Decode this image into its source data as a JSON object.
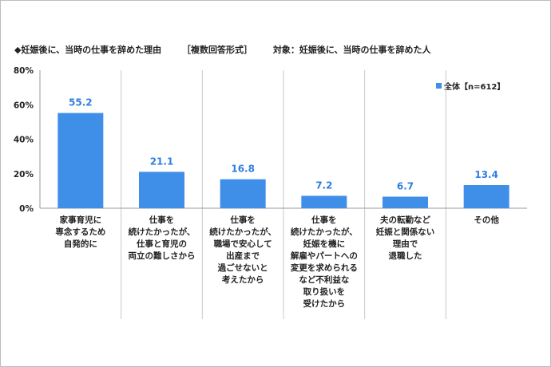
{
  "header": {
    "title": "◆妊娠後に、当時の仕事を辞めた理由",
    "format": "［複数回答形式］",
    "target": "対象：妊娠後に、当時の仕事を辞めた人"
  },
  "colors": {
    "bar": "#3f8ee8",
    "value_label": "#2f7fe0",
    "grid": "#c8c8c8"
  },
  "chart_data": {
    "type": "bar",
    "categories": [
      "家事育児に\n専念するため\n自発的に",
      "仕事を\n続けたかったが、\n仕事と育児の\n両立の難しさから",
      "仕事を\n続けたかったが、\n職場で安心して\n出産まで\n過ごせないと\n考えたから",
      "仕事を\n続けたかったが、\n妊娠を機に\n解雇やパートへの\n変更を求められる\nなど不利益な\n取り扱いを\n受けたから",
      "夫の転勤など\n妊娠と関係ない\n理由で\n退職した",
      "その他"
    ],
    "series": [
      {
        "name": "全体【n=612】",
        "values": [
          55.2,
          21.1,
          16.8,
          7.2,
          6.7,
          13.4
        ]
      }
    ],
    "value_labels": [
      "55.2",
      "21.1",
      "16.8",
      "7.2",
      "6.7",
      "13.4"
    ],
    "y_ticks": [
      "0%",
      "20%",
      "40%",
      "60%",
      "80%"
    ],
    "ylim": [
      0,
      80
    ],
    "grid": true,
    "legend_position": "top-right"
  }
}
